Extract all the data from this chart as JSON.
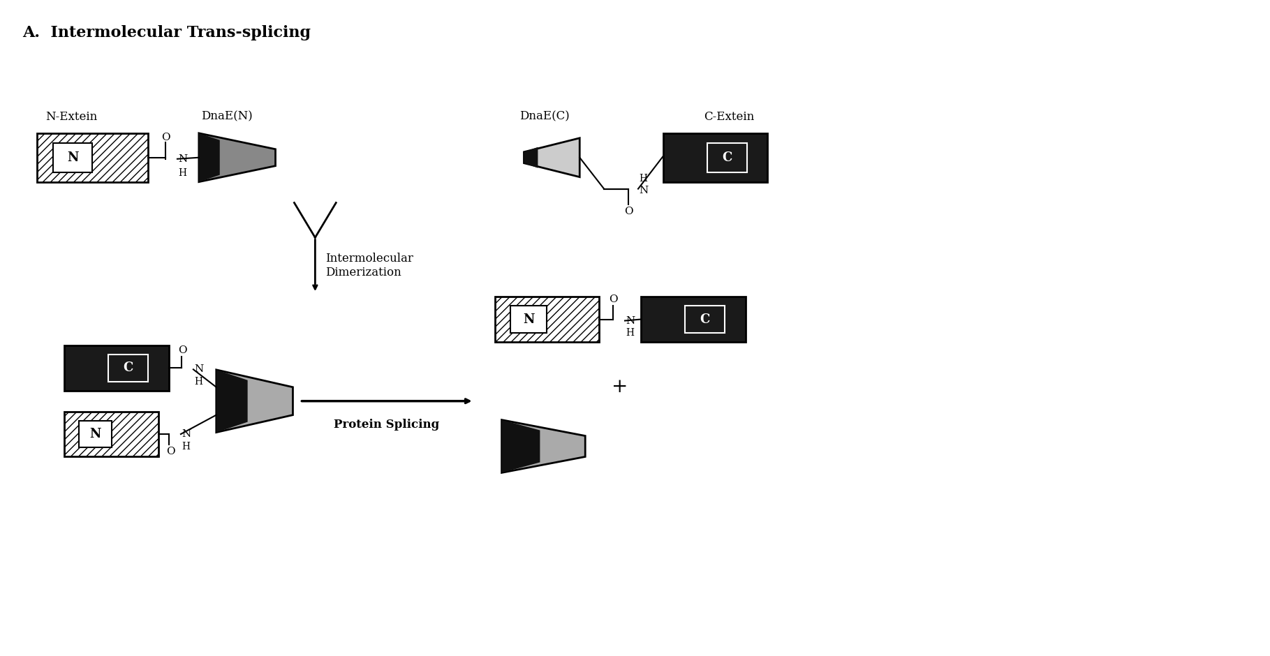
{
  "title": "A.  Intermolecular Trans-splicing",
  "title_fontsize": 16,
  "bg_color": "#ffffff",
  "text_color": "#000000",
  "label_n_extein": "N-Extein",
  "label_dnaen": "DnaE(N)",
  "label_dnaec": "DnaE(C)",
  "label_c_extein": "C-Extein",
  "label_interdimerize": "Intermolecular\nDimerization",
  "label_protein_splicing": "Protein Splicing"
}
